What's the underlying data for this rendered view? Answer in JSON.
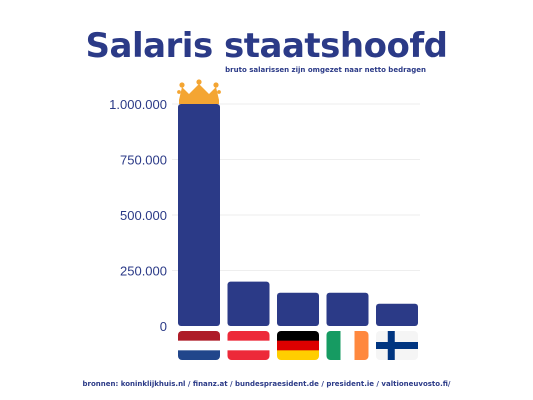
{
  "title": "Salaris staatshoofd",
  "subtitle": "bruto salarissen zijn omgezet naar netto bedragen",
  "sources": "bronnen: koninklijkhuis.nl / finanz.at /  bundespraesident.de / president.ie / valtioneuvosto.fi/",
  "colors": {
    "bar": "#2b3a87",
    "text": "#2b3a87",
    "tick": "#2b3a87",
    "crown": "#f4a532",
    "grid": "#eeeeee"
  },
  "icons": {
    "crown": "crown-icon"
  },
  "chart_data": {
    "type": "bar",
    "categories": [
      "Nederland",
      "Oostenrijk",
      "Duitsland",
      "Ierland",
      "Finland"
    ],
    "values": [
      1000000,
      200000,
      150000,
      150000,
      100000
    ],
    "yticks": [
      0,
      250000,
      500000,
      750000,
      1000000
    ],
    "ytick_labels": [
      "0",
      "250.000",
      "500.000",
      "750.000",
      "1.000.000"
    ],
    "ylim": [
      0,
      1000000
    ],
    "grid": true,
    "legend": "none",
    "flags": [
      {
        "country": "Nederland",
        "layout": "h",
        "colors": [
          "#ae1c28",
          "#ffffff",
          "#21468b"
        ]
      },
      {
        "country": "Oostenrijk",
        "layout": "h",
        "colors": [
          "#ed2939",
          "#ffffff",
          "#ed2939"
        ]
      },
      {
        "country": "Duitsland",
        "layout": "h",
        "colors": [
          "#000000",
          "#dd0000",
          "#ffce00"
        ]
      },
      {
        "country": "Ierland",
        "layout": "v",
        "colors": [
          "#169b62",
          "#ffffff",
          "#ff883e"
        ]
      },
      {
        "country": "Finland",
        "layout": "cross",
        "colors": [
          "#f5f5f5",
          "#003580"
        ]
      }
    ]
  }
}
